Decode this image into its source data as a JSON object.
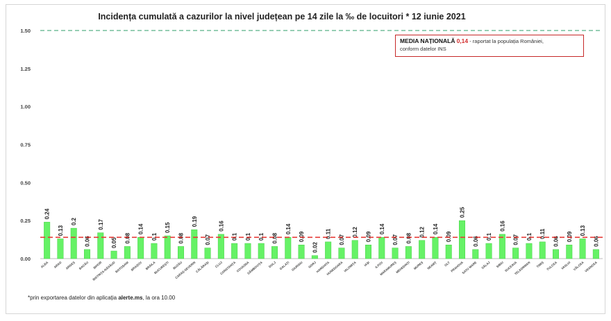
{
  "title": "Incidența cumulată a cazurilor la nivel județean pe 14 zile la ‰ de locuitori *  12 iunie 2021",
  "note": {
    "heading": "MEDIA NAȚIONALĂ",
    "value": "0,14",
    "text_after": " - raportat la populația României,",
    "text_line2": "conform datelor INS"
  },
  "footnote": {
    "prefix": "*prin exportarea datelor din aplicația ",
    "bold": "alerte.ms",
    "suffix": ", la ora 10.00"
  },
  "colors": {
    "bar": "#66f266",
    "bar_edge": "#48d048",
    "average_line": "#e53935",
    "top_line": "#2e9e6a",
    "grid": "#dddddd"
  },
  "chart_data": {
    "type": "bar",
    "categories": [
      "ALBA",
      "ARAD",
      "ARGEȘ",
      "BACĂU",
      "BIHOR",
      "BISTRIȚA-NĂSĂUD",
      "BOTOȘANI",
      "BRAȘOV",
      "BRĂILA",
      "BUCUREȘTI",
      "BUZĂU",
      "CARAȘ-SEVERIN",
      "CĂLĂRAȘI",
      "CLUJ",
      "CONSTANȚA",
      "COVASNA",
      "DÂMBOVIȚA",
      "DOLJ",
      "GALAȚI",
      "GIURGIU",
      "GORJ",
      "HARGHITA",
      "HUNEDOARA",
      "IALOMIȚA",
      "IAȘI",
      "ILFOV",
      "MARAMUREȘ",
      "MEHEDINȚI",
      "MUREȘ",
      "NEAMȚ",
      "OLT",
      "PRAHOVA",
      "SATU MARE",
      "SĂLAJ",
      "SIBIU",
      "SUCEAVA",
      "TELEORMAN",
      "TIMIȘ",
      "TULCEA",
      "VASLUI",
      "VÂLCEA",
      "VRANCEA"
    ],
    "values": [
      0.24,
      0.13,
      0.2,
      0.06,
      0.17,
      0.05,
      0.08,
      0.14,
      0.1,
      0.15,
      0.08,
      0.19,
      0.07,
      0.16,
      0.1,
      0.1,
      0.1,
      0.08,
      0.14,
      0.09,
      0.02,
      0.11,
      0.07,
      0.12,
      0.09,
      0.14,
      0.07,
      0.08,
      0.12,
      0.14,
      0.09,
      0.25,
      0.06,
      0.1,
      0.16,
      0.07,
      0.1,
      0.11,
      0.06,
      0.09,
      0.13,
      0.06
    ],
    "value_labels": [
      "0.24",
      "0.13",
      "0.2",
      "0.06",
      "0.17",
      "0.05",
      "0.08",
      "0.14",
      "0.1",
      "0.15",
      "0.08",
      "0.19",
      "0.07",
      "0.16",
      "0.1",
      "0.1",
      "0.1",
      "0.08",
      "0.14",
      "0.09",
      "0.02",
      "0.11",
      "0.07",
      "0.12",
      "0.09",
      "0.14",
      "0.07",
      "0.08",
      "0.12",
      "0.14",
      "0.09",
      "0.25",
      "0.06",
      "0.1",
      "0.16",
      "0.07",
      "0.1",
      "0.11",
      "0.06",
      "0.09",
      "0.13",
      "0.06"
    ],
    "yticks": [
      "0.00",
      "0.25",
      "0.50",
      "0.75",
      "1.00",
      "1.25",
      "1.50"
    ],
    "ylim": [
      0,
      1.5
    ],
    "national_average": 0.14,
    "reference_line": 1.5,
    "grid": false,
    "legend": "none"
  }
}
